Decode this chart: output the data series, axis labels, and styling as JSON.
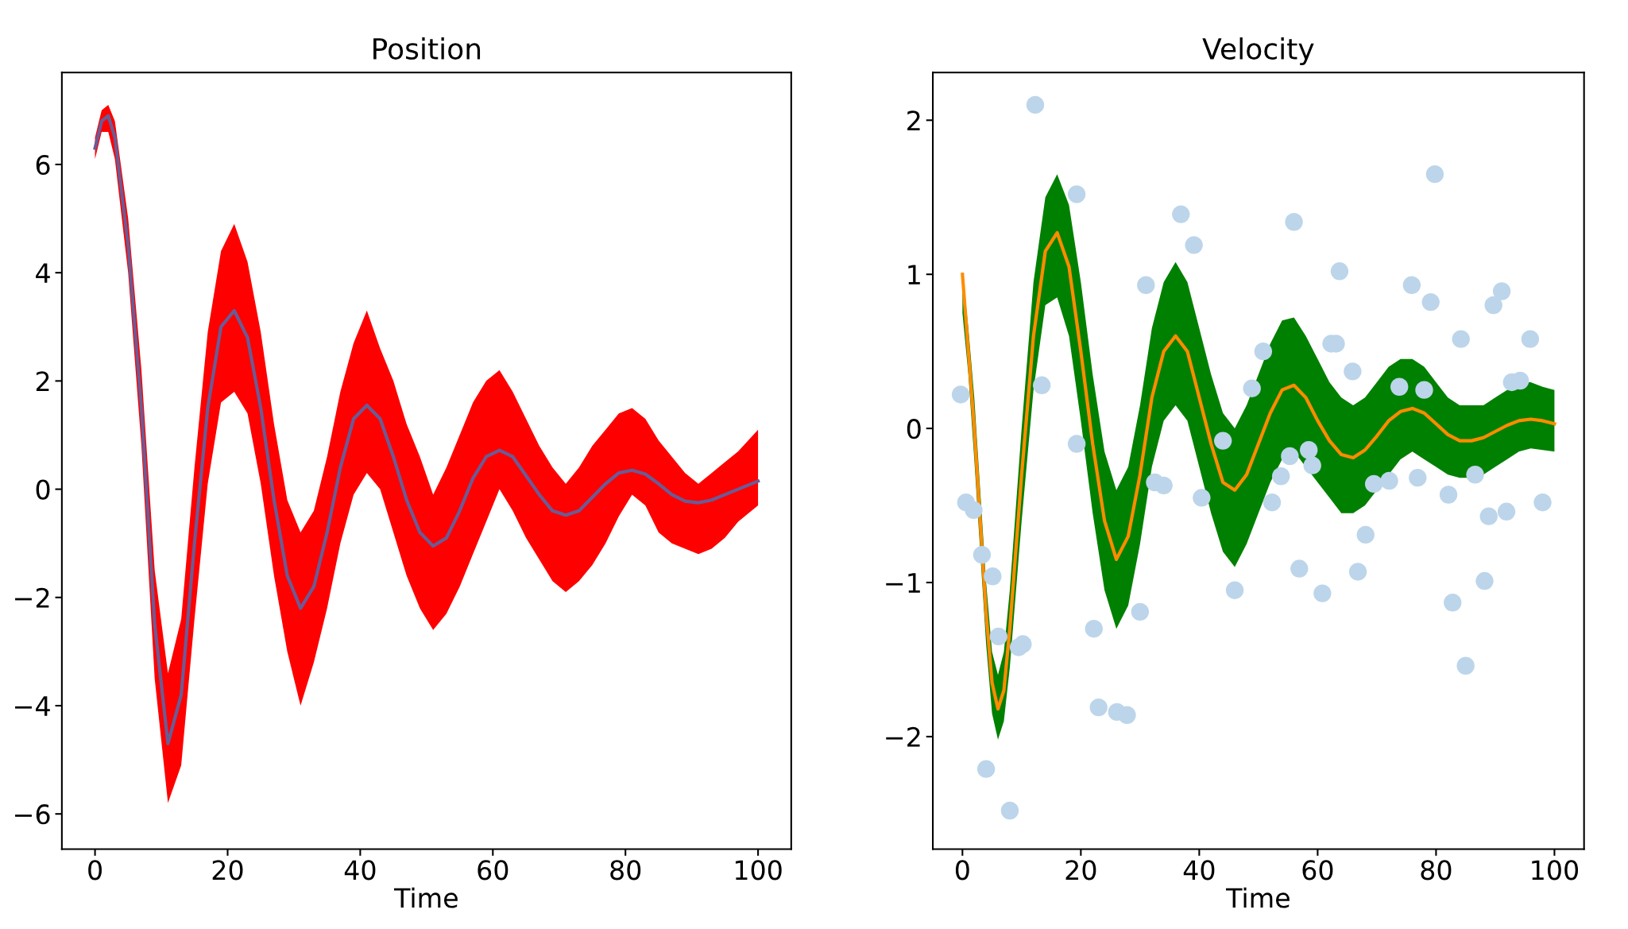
{
  "chart_data": [
    {
      "type": "line",
      "title": "Position",
      "xlabel": "Time",
      "xlim": [
        -5,
        105
      ],
      "ylim": [
        -6.65,
        7.7
      ],
      "xticks": [
        0,
        20,
        40,
        60,
        80,
        100
      ],
      "yticks": [
        {
          "value": -6,
          "label": "−6"
        },
        {
          "value": -4,
          "label": "−4"
        },
        {
          "value": -2,
          "label": "−2"
        },
        0,
        2,
        4,
        6
      ],
      "grid": false,
      "series": [
        {
          "type": "line",
          "color": "#ff0000",
          "x": [
            0,
            1,
            2,
            3,
            5,
            7,
            9,
            11,
            13,
            15,
            17,
            19,
            21,
            23,
            25,
            27,
            29,
            31,
            33,
            35,
            37,
            39,
            41,
            43,
            45,
            47,
            49,
            51,
            53,
            55,
            57,
            59,
            61,
            63,
            65,
            67,
            69,
            71,
            73,
            75,
            77,
            79,
            81,
            83,
            85,
            87,
            89,
            91,
            93,
            95,
            97,
            100
          ],
          "values": [
            null,
            null,
            null,
            null,
            null,
            null,
            null,
            null,
            null,
            null,
            null,
            null,
            null,
            null,
            null,
            null,
            null,
            null,
            null,
            null,
            null,
            null,
            null,
            null,
            null,
            null,
            null,
            null,
            null,
            null,
            null,
            null,
            null,
            null,
            null,
            null,
            null,
            null,
            null,
            null,
            null,
            null,
            null,
            null,
            null,
            null,
            null,
            null,
            null,
            null,
            null,
            null
          ],
          "upper": [
            6.5,
            7.0,
            7.1,
            6.8,
            5.0,
            2.2,
            -1.5,
            -3.4,
            -2.4,
            0.4,
            2.9,
            4.4,
            4.9,
            4.2,
            2.9,
            1.2,
            -0.2,
            -0.8,
            -0.4,
            0.6,
            1.8,
            2.7,
            3.3,
            2.6,
            2.0,
            1.2,
            0.6,
            -0.1,
            0.4,
            1.0,
            1.6,
            2.0,
            2.2,
            1.8,
            1.3,
            0.8,
            0.4,
            0.1,
            0.4,
            0.8,
            1.1,
            1.4,
            1.5,
            1.3,
            0.9,
            0.6,
            0.3,
            0.1,
            0.3,
            0.5,
            0.7,
            1.1
          ],
          "lower": [
            6.1,
            6.6,
            6.6,
            6.1,
            4.0,
            0.8,
            -3.5,
            -5.8,
            -5.1,
            -2.4,
            0.1,
            1.6,
            1.8,
            1.4,
            0.1,
            -1.6,
            -3.0,
            -4.0,
            -3.2,
            -2.2,
            -1.0,
            -0.1,
            0.3,
            0.0,
            -0.8,
            -1.6,
            -2.2,
            -2.6,
            -2.3,
            -1.8,
            -1.2,
            -0.6,
            0.0,
            -0.4,
            -0.9,
            -1.3,
            -1.7,
            -1.9,
            -1.7,
            -1.4,
            -1.0,
            -0.5,
            -0.1,
            -0.3,
            -0.8,
            -1.0,
            -1.1,
            -1.2,
            -1.1,
            -0.9,
            -0.6,
            -0.3
          ]
        },
        {
          "color": "#6b5b95",
          "x": [
            0,
            1,
            2,
            3,
            5,
            7,
            9,
            11,
            13,
            15,
            17,
            19,
            21,
            23,
            25,
            27,
            29,
            31,
            33,
            35,
            37,
            39,
            41,
            43,
            45,
            47,
            49,
            51,
            53,
            55,
            57,
            59,
            61,
            63,
            65,
            67,
            69,
            71,
            73,
            75,
            77,
            79,
            81,
            83,
            85,
            87,
            89,
            91,
            93,
            95,
            97,
            100
          ],
          "values": [
            6.3,
            6.8,
            6.9,
            6.5,
            4.5,
            1.5,
            -2.5,
            -4.7,
            -3.8,
            -1.0,
            1.5,
            3.0,
            3.3,
            2.8,
            1.5,
            -0.2,
            -1.6,
            -2.2,
            -1.8,
            -0.8,
            0.4,
            1.3,
            1.55,
            1.3,
            0.6,
            -0.2,
            -0.8,
            -1.05,
            -0.9,
            -0.4,
            0.2,
            0.6,
            0.72,
            0.6,
            0.25,
            -0.1,
            -0.4,
            -0.48,
            -0.4,
            -0.15,
            0.1,
            0.3,
            0.35,
            0.28,
            0.1,
            -0.1,
            -0.22,
            -0.25,
            -0.2,
            -0.1,
            0.0,
            0.15
          ]
        }
      ]
    },
    {
      "type": "line",
      "title": "Velocity",
      "xlabel": "Time",
      "xlim": [
        -5,
        105
      ],
      "ylim": [
        -2.73,
        2.31
      ],
      "xticks": [
        0,
        20,
        40,
        60,
        80,
        100
      ],
      "yticks": [
        {
          "value": -2,
          "label": "−2"
        },
        {
          "value": -1,
          "label": "−1"
        },
        0,
        1,
        2
      ],
      "grid": false,
      "series": [
        {
          "type": "line",
          "color": "#008000",
          "x": [
            0,
            1,
            2,
            3,
            4,
            5,
            6,
            7,
            8,
            10,
            12,
            14,
            16,
            18,
            20,
            22,
            24,
            26,
            28,
            30,
            32,
            34,
            36,
            38,
            40,
            42,
            44,
            46,
            48,
            50,
            52,
            54,
            56,
            58,
            60,
            62,
            64,
            66,
            68,
            70,
            72,
            74,
            76,
            78,
            80,
            82,
            84,
            86,
            88,
            90,
            92,
            94,
            96,
            98,
            100
          ],
          "values": [
            null,
            null,
            null,
            null,
            null,
            null,
            null,
            null,
            null,
            null,
            null,
            null,
            null,
            null,
            null,
            null,
            null,
            null,
            null,
            null,
            null,
            null,
            null,
            null,
            null,
            null,
            null,
            null,
            null,
            null,
            null,
            null,
            null,
            null,
            null,
            null,
            null,
            null,
            null,
            null,
            null,
            null,
            null,
            null,
            null,
            null,
            null,
            null,
            null,
            null,
            null,
            null,
            null,
            null,
            null
          ],
          "upper": [
            1.02,
            0.65,
            0.2,
            -0.4,
            -1.0,
            -1.45,
            -1.6,
            -1.45,
            -1.05,
            0.0,
            0.95,
            1.5,
            1.65,
            1.45,
            0.95,
            0.35,
            -0.15,
            -0.4,
            -0.25,
            0.15,
            0.65,
            0.95,
            1.08,
            0.95,
            0.65,
            0.35,
            0.1,
            0.0,
            0.15,
            0.35,
            0.55,
            0.7,
            0.72,
            0.6,
            0.45,
            0.3,
            0.2,
            0.15,
            0.2,
            0.3,
            0.4,
            0.45,
            0.45,
            0.4,
            0.3,
            0.2,
            0.15,
            0.15,
            0.15,
            0.2,
            0.25,
            0.3,
            0.3,
            0.27,
            0.25
          ],
          "lower": [
            0.75,
            0.35,
            -0.2,
            -0.8,
            -1.4,
            -1.85,
            -2.02,
            -1.9,
            -1.55,
            -0.6,
            0.25,
            0.8,
            0.85,
            0.6,
            0.05,
            -0.55,
            -1.05,
            -1.3,
            -1.15,
            -0.75,
            -0.25,
            0.05,
            0.15,
            0.05,
            -0.25,
            -0.55,
            -0.8,
            -0.9,
            -0.75,
            -0.55,
            -0.35,
            -0.2,
            -0.15,
            -0.25,
            -0.35,
            -0.45,
            -0.55,
            -0.55,
            -0.5,
            -0.4,
            -0.3,
            -0.2,
            -0.15,
            -0.2,
            -0.25,
            -0.3,
            -0.32,
            -0.32,
            -0.3,
            -0.25,
            -0.2,
            -0.15,
            -0.13,
            -0.14,
            -0.15
          ]
        },
        {
          "color": "#ff8c00",
          "x": [
            0,
            1,
            2,
            3,
            4,
            5,
            6,
            7,
            8,
            10,
            12,
            14,
            16,
            18,
            20,
            22,
            24,
            26,
            28,
            30,
            32,
            34,
            36,
            38,
            40,
            42,
            44,
            46,
            48,
            50,
            52,
            54,
            56,
            58,
            60,
            62,
            64,
            66,
            68,
            70,
            72,
            74,
            76,
            78,
            80,
            82,
            84,
            86,
            88,
            90,
            92,
            94,
            96,
            98,
            100
          ],
          "values": [
            1.0,
            0.5,
            0.0,
            -0.6,
            -1.2,
            -1.65,
            -1.82,
            -1.7,
            -1.3,
            -0.3,
            0.6,
            1.15,
            1.27,
            1.05,
            0.5,
            -0.1,
            -0.6,
            -0.85,
            -0.7,
            -0.3,
            0.2,
            0.5,
            0.6,
            0.5,
            0.2,
            -0.1,
            -0.35,
            -0.4,
            -0.3,
            -0.1,
            0.1,
            0.25,
            0.28,
            0.2,
            0.05,
            -0.08,
            -0.17,
            -0.19,
            -0.14,
            -0.05,
            0.05,
            0.11,
            0.13,
            0.1,
            0.03,
            -0.04,
            -0.08,
            -0.08,
            -0.06,
            -0.02,
            0.02,
            0.05,
            0.06,
            0.05,
            0.03
          ]
        },
        {
          "type": "scatter",
          "color": "#bcd5ea",
          "marker": "circle",
          "x": [
            12.3,
            19.3,
            36.9,
            39.1,
            31.0,
            56.0,
            63.7,
            79.8,
            75.9,
            79.1,
            91.1,
            89.7,
            84.2,
            95.9,
            62.3,
            63.1,
            65.9,
            50.8,
            48.9,
            92.8,
            94.2,
            -0.3,
            13.4,
            0.6,
            1.9,
            3.3,
            5.1,
            6.1,
            9.5,
            10.2,
            4.0,
            8.0,
            23.0,
            26.1,
            27.8,
            22.2,
            30.0,
            34.0,
            32.5,
            40.4,
            46.0,
            52.3,
            53.8,
            55.3,
            58.5,
            59.1,
            56.9,
            60.8,
            66.8,
            68.1,
            69.5,
            72.1,
            76.9,
            82.1,
            82.8,
            85.0,
            88.2,
            88.9,
            91.9,
            98.0,
            86.6,
            19.3,
            44.0,
            73.8,
            78.0
          ],
          "values": [
            2.1,
            1.52,
            1.39,
            1.19,
            0.93,
            1.34,
            1.02,
            1.65,
            0.93,
            0.82,
            0.89,
            0.8,
            0.58,
            0.58,
            0.55,
            0.55,
            0.37,
            0.5,
            0.26,
            0.3,
            0.31,
            0.22,
            0.28,
            -0.48,
            -0.53,
            -0.82,
            -0.96,
            -1.35,
            -1.42,
            -1.4,
            -2.21,
            -2.48,
            -1.81,
            -1.84,
            -1.86,
            -1.3,
            -1.19,
            -0.37,
            -0.35,
            -0.45,
            -1.05,
            -0.48,
            -0.31,
            -0.18,
            -0.14,
            -0.24,
            -0.91,
            -1.07,
            -0.93,
            -0.69,
            -0.36,
            -0.34,
            -0.32,
            -0.43,
            -1.13,
            -1.54,
            -0.99,
            -0.57,
            -0.54,
            -0.48,
            -0.3,
            -0.1,
            -0.08,
            0.27,
            0.25
          ]
        }
      ]
    }
  ]
}
